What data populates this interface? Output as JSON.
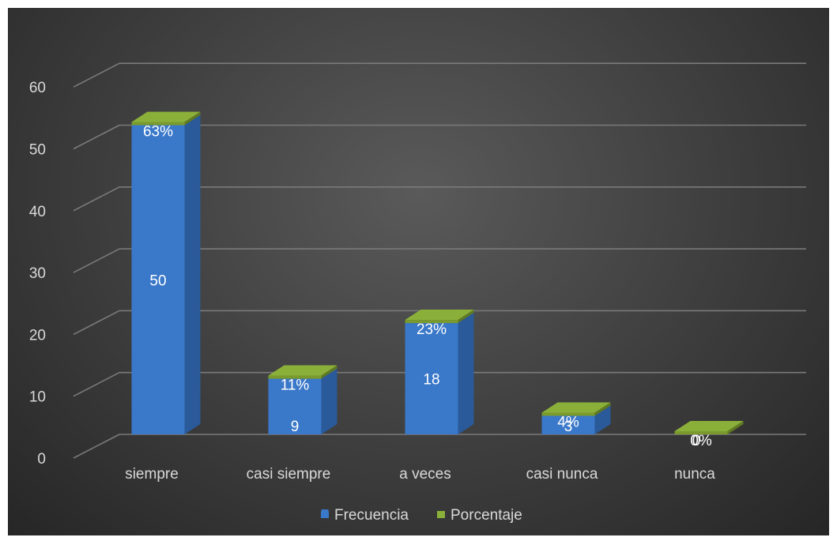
{
  "chart_data": {
    "type": "bar",
    "variant": "3d-stacked-column",
    "title": "",
    "xlabel": "",
    "ylabel": "",
    "categories": [
      "siempre",
      "casi siempre",
      "a veces",
      "casi nunca",
      "nunca"
    ],
    "series": [
      {
        "name": "Frecuencia",
        "values": [
          50,
          9,
          18,
          3,
          0
        ],
        "labels": [
          "50",
          "9",
          "18",
          "3",
          ""
        ],
        "color": "#3a78c9"
      },
      {
        "name": "Porcentaje",
        "values": [
          0.63,
          0.11,
          0.23,
          0.04,
          0.0
        ],
        "labels": [
          "63%",
          "11%",
          "23%",
          "4%",
          "0%"
        ],
        "color": "#7a9a2e"
      }
    ],
    "extra_labels": {
      "nunca": "0"
    },
    "ylim": [
      0,
      60
    ],
    "yticks": [
      0,
      10,
      20,
      30,
      40,
      50,
      60
    ],
    "grid": true,
    "legend_position": "bottom",
    "background": "#3d3d3d"
  }
}
